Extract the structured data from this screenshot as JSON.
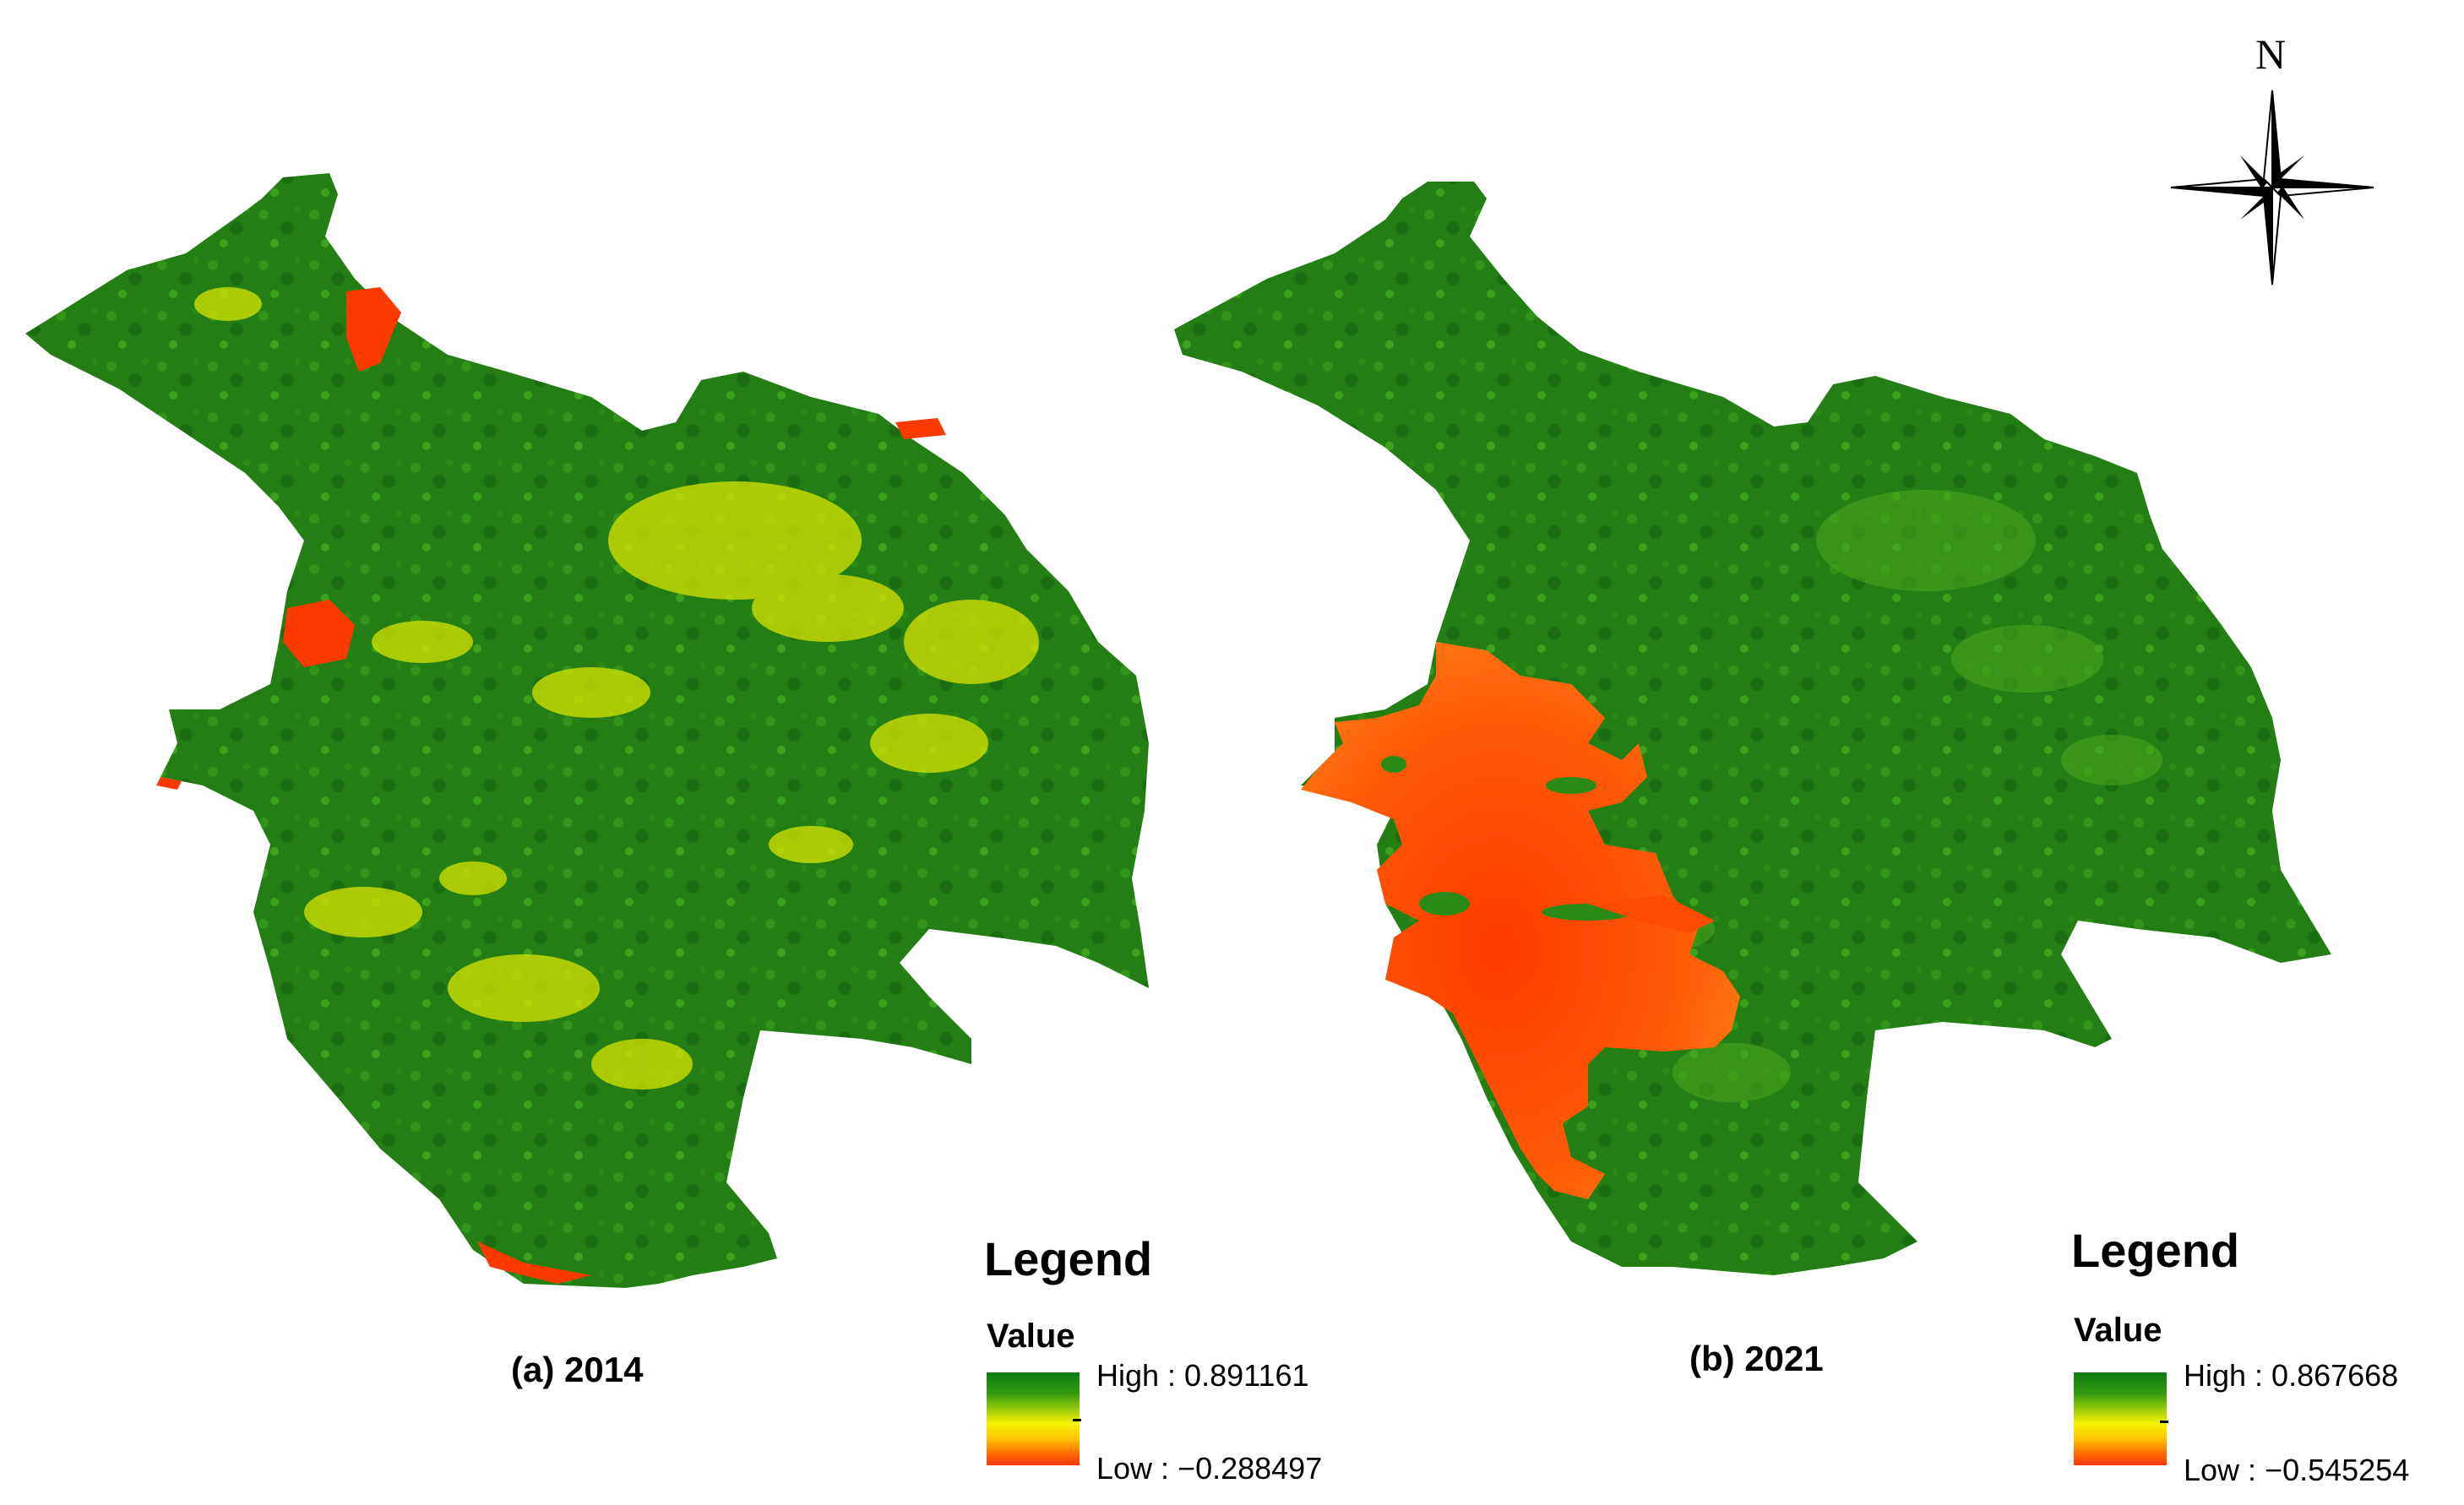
{
  "panels": [
    {
      "caption": "(a) 2014",
      "legend": {
        "title": "Legend",
        "subtitle": "Value",
        "high_label": "High : 0.891161",
        "low_label": "Low : −0.288497"
      }
    },
    {
      "caption": "(b) 2021",
      "legend": {
        "title": "Legend",
        "subtitle": "Value",
        "high_label": "High : 0.867668",
        "low_label": "Low : −0.545254"
      }
    }
  ],
  "north_arrow": {
    "label": "N",
    "icon": "north-arrow-icon"
  },
  "colors": {
    "high": "#0e7a12",
    "mid": "#f6f300",
    "low": "#ff3500",
    "vegetation_dark": "#1d7a12",
    "vegetation_light": "#3a9a18"
  }
}
